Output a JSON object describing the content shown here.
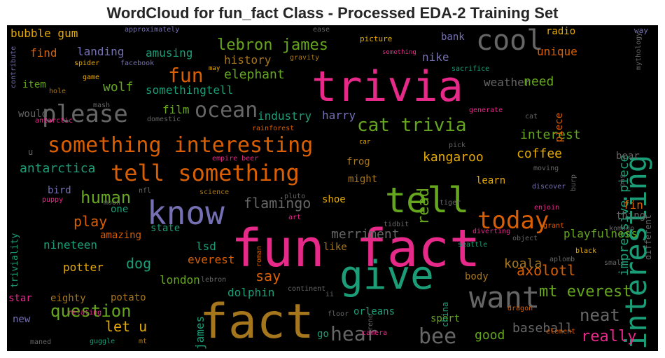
{
  "title": "WordCloud for fun_fact Class - Processed EDA-2 Training Set",
  "colors": {
    "green": "#1b9e77",
    "orange": "#d95f02",
    "purple": "#7570b3",
    "pink": "#e7298a",
    "lime": "#66a61e",
    "gold": "#e6ab02",
    "brown": "#a6761d",
    "gray": "#666666"
  },
  "words": [
    "fun fact",
    "fact",
    "trivia",
    "give",
    "know",
    "tell",
    "interesting",
    "cool",
    "want",
    "something interesting",
    "tell something",
    "please",
    "ocean",
    "fun",
    "today",
    "cat trivia",
    "lebron james",
    "bee",
    "hear",
    "question",
    "mt everest",
    "neat",
    "human",
    "really",
    "read",
    "impressive piece",
    "play",
    "axolotl",
    "say",
    "koala",
    "let u",
    "flamingo",
    "antarctica",
    "kangaroo",
    "merriment",
    "baseball",
    "dog",
    "coffee",
    "interest",
    "elephant",
    "wolf",
    "need",
    "history",
    "nineteen",
    "good",
    "james",
    "potter",
    "london",
    "lsd",
    "everest",
    "playfulness",
    "dolphin",
    "bubble gum",
    "landing",
    "amusing",
    "find",
    "unique",
    "radio",
    "bank",
    "nike",
    "weather",
    "somethingtell",
    "film",
    "industry",
    "harry",
    "item",
    "would",
    "piece",
    "bird",
    "frog",
    "might",
    "learn",
    "shoe",
    "fin",
    "thing",
    "amazing",
    "state",
    "one",
    "potato",
    "eighty",
    "star",
    "new",
    "body",
    "like",
    "orleans",
    "sport",
    "go",
    "triviality",
    "bear",
    "china",
    "different",
    "u",
    "approximately",
    "ease",
    "way",
    "picture",
    "something",
    "facebook",
    "spider",
    "may",
    "gravity",
    "game",
    "sacrifice",
    "mythology",
    "contribute",
    "hole",
    "mash",
    "generate",
    "cat",
    "antarctic",
    "domestic",
    "rainforest",
    "car",
    "pick",
    "empire beer",
    "moving",
    "burp",
    "pas",
    "nfl",
    "science",
    "discover",
    "puppy",
    "pluto",
    "enjoin",
    "moon",
    "art",
    "tiger",
    "grant",
    "komodo",
    "tidbit",
    "diverting",
    "object",
    "seattle",
    "black",
    "small",
    "roman",
    "lebron",
    "aplomb",
    "continent",
    "ii",
    "floor",
    "dragon",
    "relating",
    "reno",
    "camera",
    "element",
    "maned",
    "guggle",
    "mt"
  ]
}
